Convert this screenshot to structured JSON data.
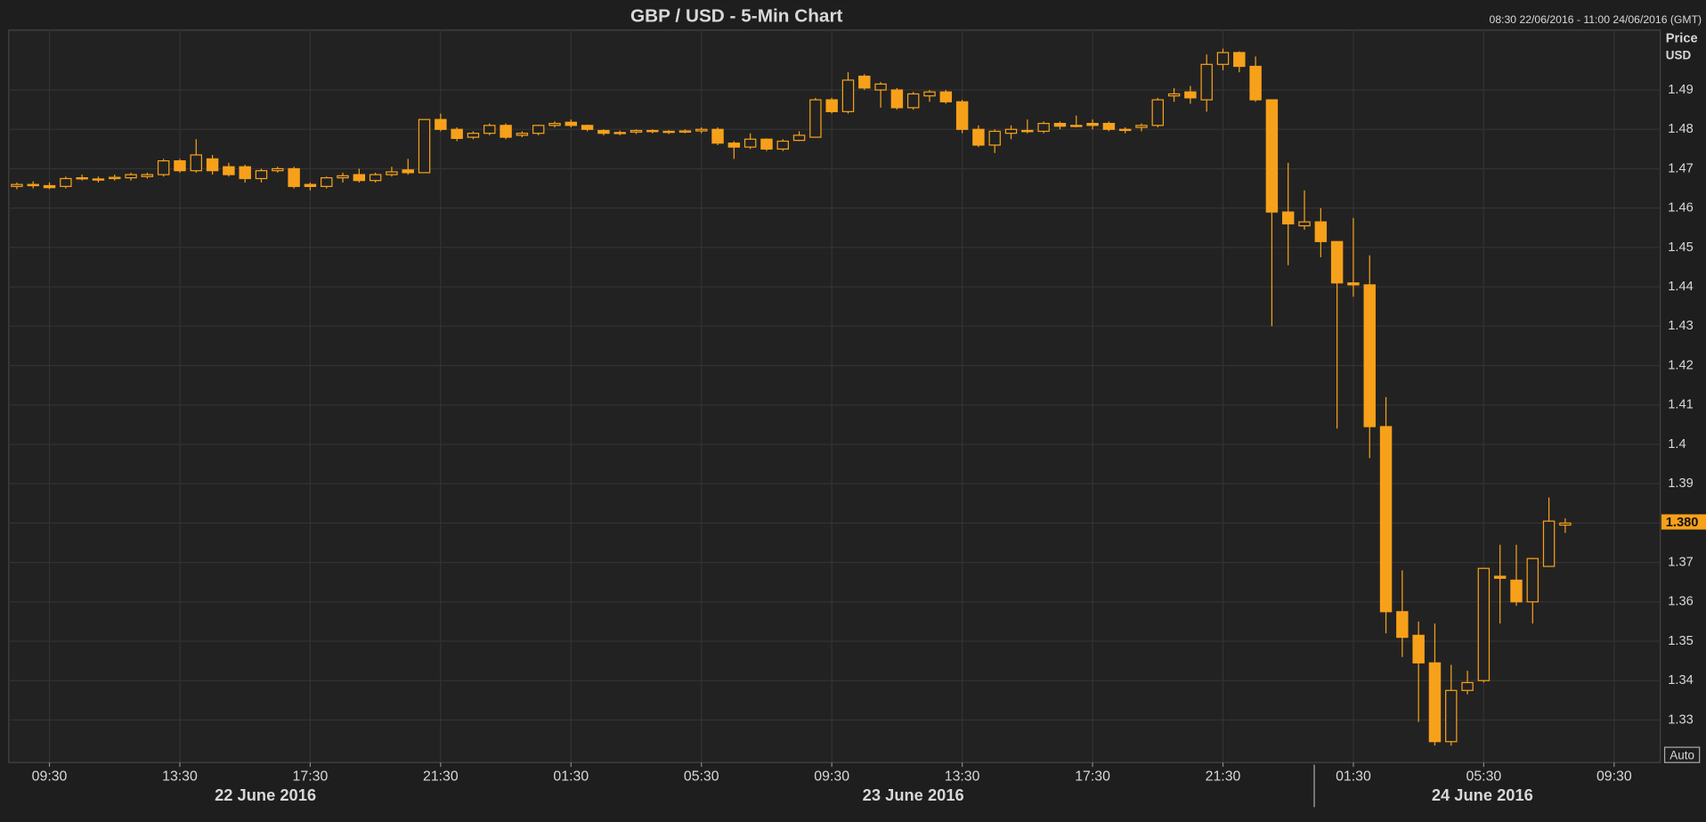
{
  "chart_data": {
    "type": "candlestick",
    "title": "GBP / USD - 5-Min Chart",
    "subtitle": "08:30 22/06/2016 - 11:00 24/06/2016 (GMT)",
    "y_label": [
      "Price",
      "USD"
    ],
    "scale_mode": "Auto",
    "color": "#f7a11a",
    "grid": true,
    "x": [
      "22/06/2016 08:30",
      "22/06/2016 09:00",
      "22/06/2016 09:30",
      "22/06/2016 10:00",
      "22/06/2016 10:30",
      "22/06/2016 11:00",
      "22/06/2016 11:30",
      "22/06/2016 12:00",
      "22/06/2016 12:30",
      "22/06/2016 13:00",
      "22/06/2016 13:30",
      "22/06/2016 14:00",
      "22/06/2016 14:30",
      "22/06/2016 15:00",
      "22/06/2016 15:30",
      "22/06/2016 16:00",
      "22/06/2016 16:30",
      "22/06/2016 17:00",
      "22/06/2016 17:30",
      "22/06/2016 18:00",
      "22/06/2016 18:30",
      "22/06/2016 19:00",
      "22/06/2016 19:30",
      "22/06/2016 20:00",
      "22/06/2016 20:30",
      "22/06/2016 21:00",
      "22/06/2016 21:30",
      "22/06/2016 22:00",
      "22/06/2016 22:30",
      "22/06/2016 23:00",
      "22/06/2016 23:30",
      "23/06/2016 00:00",
      "23/06/2016 00:30",
      "23/06/2016 01:00",
      "23/06/2016 01:30",
      "23/06/2016 02:00",
      "23/06/2016 02:30",
      "23/06/2016 03:00",
      "23/06/2016 03:30",
      "23/06/2016 04:00",
      "23/06/2016 04:30",
      "23/06/2016 05:00",
      "23/06/2016 05:30",
      "23/06/2016 06:00",
      "23/06/2016 06:30",
      "23/06/2016 07:00",
      "23/06/2016 07:30",
      "23/06/2016 08:00",
      "23/06/2016 08:30",
      "23/06/2016 09:00",
      "23/06/2016 09:30",
      "23/06/2016 10:00",
      "23/06/2016 10:30",
      "23/06/2016 11:00",
      "23/06/2016 11:30",
      "23/06/2016 12:00",
      "23/06/2016 12:30",
      "23/06/2016 13:00",
      "23/06/2016 13:30",
      "23/06/2016 14:00",
      "23/06/2016 14:30",
      "23/06/2016 15:00",
      "23/06/2016 15:30",
      "23/06/2016 16:00",
      "23/06/2016 16:30",
      "23/06/2016 17:00",
      "23/06/2016 17:30",
      "23/06/2016 18:00",
      "23/06/2016 18:30",
      "23/06/2016 19:00",
      "23/06/2016 19:30",
      "23/06/2016 20:00",
      "23/06/2016 20:30",
      "23/06/2016 21:00",
      "23/06/2016 21:30",
      "23/06/2016 22:00",
      "23/06/2016 22:30",
      "23/06/2016 23:00",
      "23/06/2016 23:30",
      "24/06/2016 00:00",
      "24/06/2016 00:30",
      "24/06/2016 01:00",
      "24/06/2016 01:30",
      "24/06/2016 02:00",
      "24/06/2016 02:30",
      "24/06/2016 03:00",
      "24/06/2016 03:30",
      "24/06/2016 04:00",
      "24/06/2016 04:30",
      "24/06/2016 05:00",
      "24/06/2016 05:30",
      "24/06/2016 06:00",
      "24/06/2016 06:30",
      "24/06/2016 07:00",
      "24/06/2016 07:30",
      "24/06/2016 08:00"
    ],
    "open": [
      1.4655,
      1.466,
      1.4657,
      1.4655,
      1.4675,
      1.4673,
      1.4675,
      1.4677,
      1.468,
      1.4685,
      1.472,
      1.4695,
      1.4725,
      1.4705,
      1.4705,
      1.4675,
      1.4695,
      1.47,
      1.466,
      1.4655,
      1.4677,
      1.4685,
      1.467,
      1.4685,
      1.4697,
      1.469,
      1.4825,
      1.48,
      1.478,
      1.479,
      1.481,
      1.4785,
      1.479,
      1.481,
      1.4818,
      1.481,
      1.4797,
      1.479,
      1.4793,
      1.4797,
      1.4795,
      1.4793,
      1.4796,
      1.48,
      1.4765,
      1.4755,
      1.4775,
      1.475,
      1.4772,
      1.478,
      1.4875,
      1.4845,
      1.4935,
      1.49,
      1.49,
      1.4855,
      1.4885,
      1.4895,
      1.487,
      1.48,
      1.476,
      1.479,
      1.4795,
      1.4795,
      1.4815,
      1.481,
      1.4815,
      1.4815,
      1.4798,
      1.4805,
      1.481,
      1.4885,
      1.4895,
      1.4875,
      1.4965,
      1.4995,
      1.496,
      1.4875,
      1.459,
      1.4555,
      1.4565,
      1.4515,
      1.441,
      1.4405,
      1.4045,
      1.3575,
      1.3515,
      1.3445,
      1.3245,
      1.3375,
      1.34,
      1.3665,
      1.3655,
      1.36,
      1.369,
      1.3795
    ],
    "high": [
      1.4665,
      1.4668,
      1.4665,
      1.468,
      1.4685,
      1.468,
      1.4685,
      1.469,
      1.469,
      1.4725,
      1.4725,
      1.4775,
      1.4735,
      1.4715,
      1.471,
      1.47,
      1.4705,
      1.4705,
      1.4665,
      1.468,
      1.469,
      1.47,
      1.469,
      1.4705,
      1.4725,
      1.4825,
      1.484,
      1.4805,
      1.4795,
      1.4815,
      1.4815,
      1.4795,
      1.4812,
      1.482,
      1.4825,
      1.4812,
      1.48,
      1.4797,
      1.48,
      1.48,
      1.4798,
      1.48,
      1.4805,
      1.4805,
      1.477,
      1.479,
      1.4777,
      1.4775,
      1.4795,
      1.488,
      1.488,
      1.4945,
      1.494,
      1.492,
      1.4905,
      1.4895,
      1.49,
      1.49,
      1.4875,
      1.481,
      1.48,
      1.481,
      1.4825,
      1.482,
      1.482,
      1.4835,
      1.4825,
      1.482,
      1.4805,
      1.4815,
      1.488,
      1.4905,
      1.491,
      1.499,
      1.5005,
      1.4998,
      1.4985,
      1.4875,
      1.4715,
      1.4645,
      1.46,
      1.4515,
      1.4575,
      1.448,
      1.412,
      1.368,
      1.355,
      1.3545,
      1.344,
      1.3425,
      1.3685,
      1.3745,
      1.3745,
      1.3712,
      1.3865,
      1.3812
    ],
    "low": [
      1.4648,
      1.465,
      1.4648,
      1.465,
      1.467,
      1.4665,
      1.467,
      1.467,
      1.4675,
      1.468,
      1.469,
      1.469,
      1.4685,
      1.468,
      1.4665,
      1.4665,
      1.469,
      1.465,
      1.4645,
      1.465,
      1.4665,
      1.4665,
      1.4665,
      1.468,
      1.4685,
      1.469,
      1.4795,
      1.477,
      1.4775,
      1.4785,
      1.4775,
      1.478,
      1.4785,
      1.4805,
      1.4805,
      1.4795,
      1.4785,
      1.4785,
      1.4788,
      1.479,
      1.4788,
      1.479,
      1.479,
      1.476,
      1.4725,
      1.475,
      1.4745,
      1.4745,
      1.477,
      1.478,
      1.484,
      1.484,
      1.49,
      1.4855,
      1.485,
      1.485,
      1.487,
      1.4865,
      1.479,
      1.4755,
      1.474,
      1.4775,
      1.479,
      1.479,
      1.48,
      1.4805,
      1.48,
      1.4795,
      1.479,
      1.4795,
      1.4805,
      1.487,
      1.4865,
      1.4845,
      1.495,
      1.4945,
      1.487,
      1.43,
      1.4455,
      1.4545,
      1.4475,
      1.404,
      1.4375,
      1.3965,
      1.352,
      1.346,
      1.3295,
      1.3235,
      1.3235,
      1.3365,
      1.3395,
      1.3545,
      1.359,
      1.3545,
      1.369,
      1.3775
    ],
    "close": [
      1.466,
      1.4657,
      1.4652,
      1.4675,
      1.4677,
      1.4674,
      1.4678,
      1.4685,
      1.4685,
      1.472,
      1.4695,
      1.4735,
      1.4695,
      1.4685,
      1.4675,
      1.4695,
      1.47,
      1.4655,
      1.4655,
      1.4677,
      1.4682,
      1.467,
      1.4685,
      1.4692,
      1.469,
      1.4825,
      1.48,
      1.4777,
      1.479,
      1.481,
      1.478,
      1.479,
      1.481,
      1.4815,
      1.481,
      1.48,
      1.479,
      1.4792,
      1.4797,
      1.4795,
      1.4793,
      1.4796,
      1.48,
      1.4765,
      1.4755,
      1.4775,
      1.475,
      1.477,
      1.4785,
      1.4875,
      1.4845,
      1.4925,
      1.4905,
      1.4915,
      1.4855,
      1.489,
      1.4895,
      1.487,
      1.48,
      1.476,
      1.4795,
      1.48,
      1.4797,
      1.4815,
      1.4808,
      1.481,
      1.481,
      1.48,
      1.48,
      1.481,
      1.4875,
      1.489,
      1.488,
      1.4965,
      1.4995,
      1.496,
      1.4875,
      1.459,
      1.456,
      1.4565,
      1.4515,
      1.441,
      1.4405,
      1.4045,
      1.3575,
      1.351,
      1.3445,
      1.3245,
      1.3375,
      1.3395,
      1.3685,
      1.366,
      1.36,
      1.371,
      1.3805,
      1.38
    ],
    "xlim": [
      "22/06/2016 08:15",
      "24/06/2016 10:55"
    ],
    "xticks": [
      {
        "value": "22/06/2016 09:30",
        "label": "09:30"
      },
      {
        "value": "22/06/2016 13:30",
        "label": "13:30"
      },
      {
        "value": "22/06/2016 17:30",
        "label": "17:30"
      },
      {
        "value": "22/06/2016 21:30",
        "label": "21:30"
      },
      {
        "value": "23/06/2016 01:30",
        "label": "01:30"
      },
      {
        "value": "23/06/2016 05:30",
        "label": "05:30"
      },
      {
        "value": "23/06/2016 09:30",
        "label": "09:30"
      },
      {
        "value": "23/06/2016 13:30",
        "label": "13:30"
      },
      {
        "value": "23/06/2016 17:30",
        "label": "17:30"
      },
      {
        "value": "23/06/2016 21:30",
        "label": "21:30"
      },
      {
        "value": "24/06/2016 01:30",
        "label": "01:30"
      },
      {
        "value": "24/06/2016 05:30",
        "label": "05:30"
      },
      {
        "value": "24/06/2016 09:30",
        "label": "09:30"
      }
    ],
    "day_labels": [
      {
        "value": "22/06/2016",
        "label": "22 June 2016"
      },
      {
        "value": "23/06/2016",
        "label": "23 June 2016"
      },
      {
        "value": "24/06/2016",
        "label": "24 June 2016"
      }
    ],
    "ylim": [
      1.3192,
      1.5052
    ],
    "yticks": [
      1.33,
      1.34,
      1.35,
      1.36,
      1.37,
      1.38,
      1.39,
      1.4,
      1.41,
      1.42,
      1.43,
      1.44,
      1.45,
      1.46,
      1.47,
      1.48,
      1.49
    ],
    "last_price": {
      "value": 1.3803,
      "label": "1.380"
    }
  }
}
